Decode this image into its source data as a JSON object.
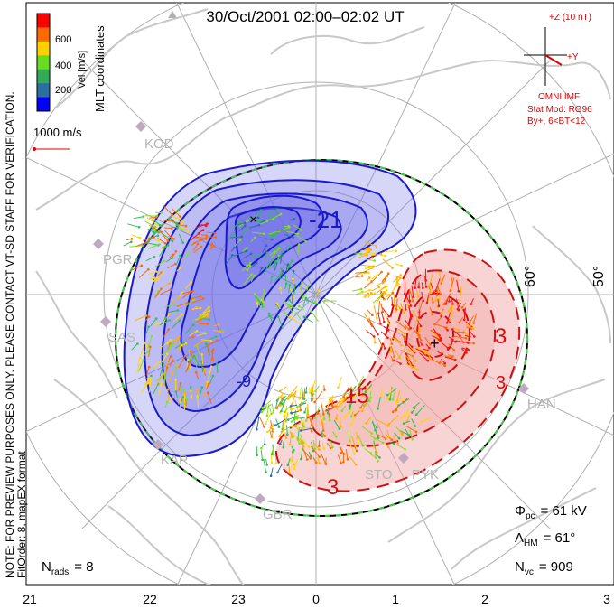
{
  "title": "30/Oct/2001 02:00–02:02 UT",
  "colorbar": {
    "label": "Vel [m/s]",
    "ticks": [
      "600",
      "400",
      "200"
    ],
    "colors": [
      "#ff0000",
      "#ff6a00",
      "#ffd000",
      "#66dd22",
      "#33aa55",
      "#2a6fa0",
      "#0000ff"
    ]
  },
  "coordinate_system": "MLT coordinates",
  "vector_scale": "1000 m/s",
  "side_note_line1": "NOTE: FOR PREVIEW PURPOSES ONLY. PLEASE CONTACT VT-SD STAFF FOR VERIFICATION.",
  "side_note_line2": "FitOrder: 8, mapEX format",
  "imf": {
    "z_label": "+Z (10 nT)",
    "y_label": "+Y",
    "source": "OMNI IMF",
    "stat_mod": "Stat Mod: RG96",
    "condition": "By+, 6<BT<12"
  },
  "latitude_labels": [
    "60°",
    "50°"
  ],
  "mlt_labels": [
    "21",
    "22",
    "23",
    "0",
    "1",
    "2",
    "3"
  ],
  "radars": [
    "KOD",
    "PGR",
    "SAS",
    "KAP",
    "GBR",
    "STO",
    "PYK",
    "HAN"
  ],
  "contour_labels": {
    "negative": [
      "-21",
      "-9"
    ],
    "positive": [
      "15",
      "3",
      "3",
      "3"
    ]
  },
  "stats": {
    "phi_pc_label": "Φ",
    "phi_pc_sub": "pc",
    "phi_pc_value": "= 61 kV",
    "lambda_hm_label": "Λ",
    "lambda_hm_sub": "HM",
    "lambda_hm_value": "= 61°",
    "n_vc_label": "N",
    "n_vc_sub": "vc",
    "n_vc_value": "= 909",
    "n_rads_label": "N",
    "n_rads_sub": "rads",
    "n_rads_value": "= 8"
  },
  "colors": {
    "negative_contour": "#1a1acc",
    "positive_contour": "#d01010",
    "negative_fill": "#6a6ae8",
    "positive_fill": "#f0a0a0",
    "coastline": "#c8c8c8",
    "grid": "#b0b0b0",
    "hmb_green": "#44cc44"
  }
}
